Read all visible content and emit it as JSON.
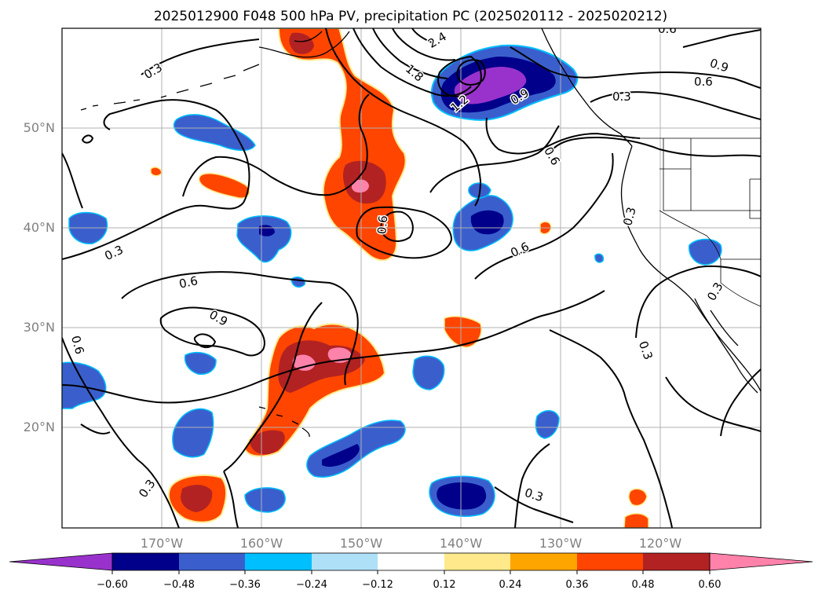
{
  "title": "2025012900 F048 500 hPa PV, precipitation PC (2025020112 - 2025020212)",
  "map": {
    "lat_range": [
      10,
      60
    ],
    "lon_range": [
      -180,
      -110
    ],
    "lat_labels": [
      "20°N",
      "30°N",
      "40°N",
      "50°N"
    ],
    "lon_labels": [
      "170°W",
      "160°W",
      "150°W",
      "140°W",
      "130°W",
      "120°W"
    ],
    "gridlines": true
  },
  "contour_labels": [
    "0.3",
    "0.3",
    "0.3",
    "0.3",
    "0.3",
    "0.3",
    "0.3",
    "0.6",
    "0.6",
    "0.6",
    "0.6",
    "0.6",
    "0.9",
    "0.9",
    "1.8",
    "2.4",
    "0.9",
    "0.6",
    "0.6",
    "1.2",
    "0.3"
  ],
  "colorbar": {
    "colors": [
      "#9932cc",
      "#00008b",
      "#3a5fcd",
      "#00bfff",
      "#aee0f8",
      "#ffffff",
      "#ffe98b",
      "#ffa500",
      "#ff4500",
      "#b22222",
      "#ff82ab"
    ],
    "tick_labels": [
      "−0.60",
      "−0.48",
      "−0.36",
      "−0.24",
      "−0.12",
      "0.12",
      "0.24",
      "0.36",
      "0.48",
      "0.60"
    ],
    "extend": "both"
  }
}
